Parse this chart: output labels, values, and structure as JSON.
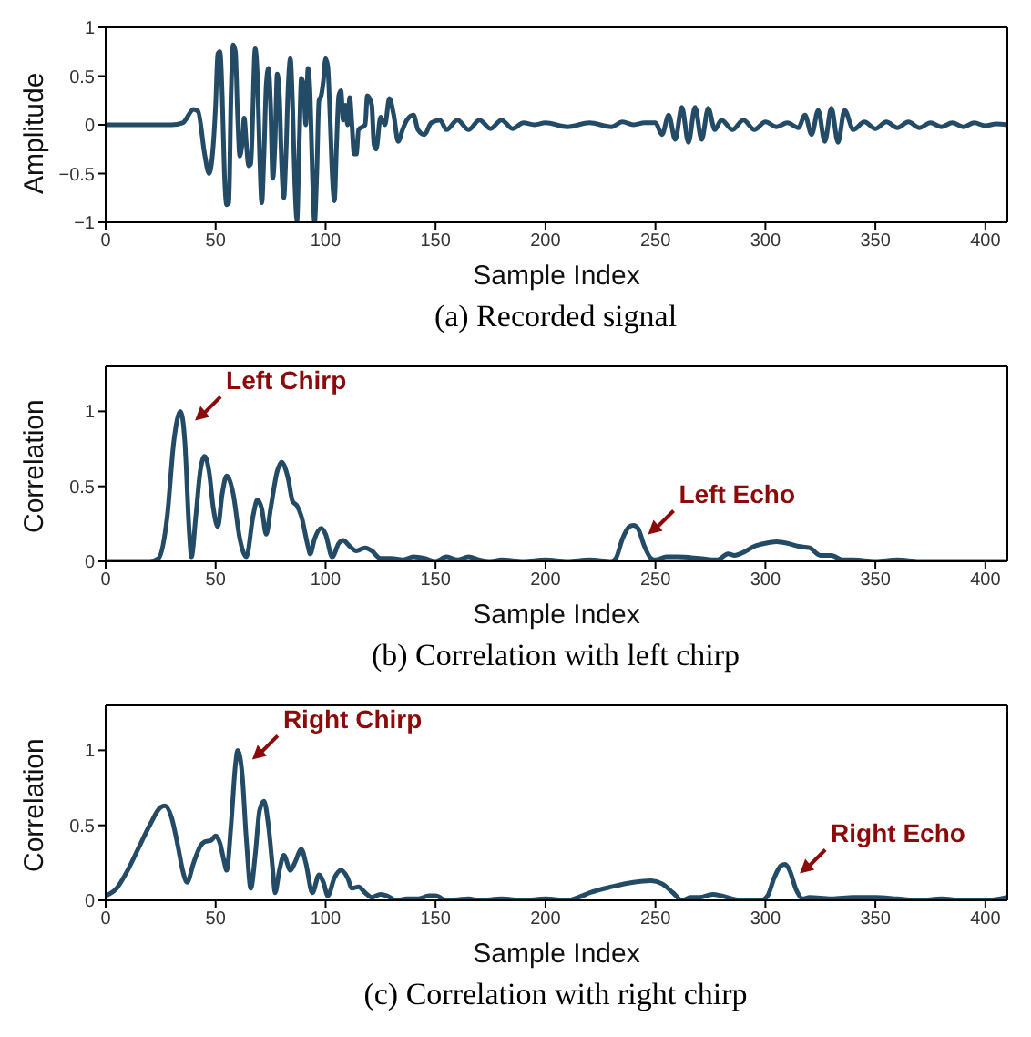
{
  "chart_data": [
    {
      "type": "line",
      "xlabel": "Sample Index",
      "ylabel": "Amplitude",
      "xlim": [
        0,
        410
      ],
      "xticks": [
        0,
        50,
        100,
        150,
        200,
        250,
        300,
        350,
        400
      ],
      "ylim": [
        -1,
        1
      ],
      "yticks": [
        -1,
        -0.5,
        0,
        0.5,
        1
      ],
      "marker": "none",
      "line_style": "solid",
      "color": "#234b66",
      "x": [
        0,
        10,
        20,
        30,
        35,
        40,
        42,
        45,
        47,
        50,
        51,
        52,
        53,
        54,
        55,
        56,
        57,
        58,
        59,
        60,
        61,
        62,
        63,
        64,
        65,
        66,
        68,
        69,
        70,
        71,
        72,
        73,
        74,
        75,
        76,
        77,
        78,
        79,
        80,
        81,
        82,
        83,
        84,
        85,
        86,
        87,
        88,
        89,
        90,
        91,
        92,
        93,
        94,
        95,
        96,
        97,
        98,
        99,
        100,
        101,
        102,
        103,
        104,
        105,
        106,
        107,
        108,
        109,
        110,
        111,
        112,
        113,
        114,
        115,
        118,
        119,
        121,
        122,
        123,
        125,
        127,
        129,
        131,
        133,
        135,
        137,
        140,
        142,
        145,
        148,
        152,
        155,
        160,
        165,
        170,
        175,
        180,
        185,
        190,
        195,
        200,
        210,
        220,
        230,
        235,
        240,
        245,
        250,
        253,
        256,
        259,
        262,
        265,
        268,
        271,
        274,
        277,
        280,
        285,
        290,
        295,
        300,
        305,
        310,
        315,
        318,
        321,
        324,
        327,
        330,
        333,
        336,
        340,
        345,
        350,
        355,
        360,
        365,
        370,
        375,
        380,
        385,
        390,
        395,
        400,
        405,
        410
      ],
      "values": [
        0,
        0,
        0,
        0,
        0.02,
        0.16,
        0.14,
        -0.3,
        -0.5,
        0.2,
        0.73,
        0.75,
        0.3,
        -0.5,
        -0.82,
        -0.8,
        0.3,
        0.82,
        0.75,
        0.1,
        -0.32,
        -0.2,
        0.07,
        -0.2,
        -0.42,
        -0.4,
        0.78,
        0.5,
        -0.3,
        -0.8,
        -0.3,
        0.4,
        0.58,
        0.2,
        -0.55,
        -0.2,
        0.52,
        0.3,
        -0.4,
        -0.75,
        -0.3,
        0.4,
        0.68,
        0.2,
        -0.6,
        -0.98,
        -0.2,
        0.48,
        0.4,
        0,
        0.58,
        0.3,
        -0.5,
        -1,
        -0.5,
        0.25,
        0.3,
        0.45,
        0.68,
        0.6,
        0.1,
        -0.5,
        -0.78,
        -0.2,
        0.3,
        0.35,
        0.05,
        0.2,
        0,
        0.28,
        0,
        -0.3,
        -0.3,
        -0.05,
        0,
        0.3,
        0.2,
        -0.2,
        -0.25,
        0.08,
        0,
        0.27,
        0.1,
        -0.17,
        -0.05,
        0.05,
        0.1,
        -0.05,
        -0.1,
        0.02,
        0.05,
        -0.05,
        0.05,
        -0.05,
        0.05,
        -0.04,
        0.05,
        -0.04,
        0.02,
        0,
        0.02,
        -0.02,
        0.02,
        -0.02,
        0.03,
        0,
        0.02,
        0.02,
        -0.1,
        0.1,
        -0.15,
        0.18,
        -0.18,
        0.18,
        -0.15,
        0.17,
        -0.05,
        0.05,
        -0.05,
        0.05,
        -0.05,
        0.03,
        -0.02,
        0.02,
        -0.03,
        0.1,
        -0.1,
        0.15,
        -0.17,
        0.17,
        -0.18,
        0.15,
        -0.05,
        0.03,
        -0.04,
        0.03,
        -0.03,
        0.03,
        -0.03,
        0.02,
        -0.02,
        0.02,
        -0.02,
        0.02,
        -0.01,
        0.01,
        0
      ],
      "annotations": [
        "(a) Recorded signal"
      ]
    },
    {
      "type": "line",
      "xlabel": "Sample Index",
      "ylabel": "Correlation",
      "xlim": [
        0,
        410
      ],
      "xticks": [
        0,
        50,
        100,
        150,
        200,
        250,
        300,
        350,
        400
      ],
      "ylim": [
        0,
        1.3
      ],
      "yticks": [
        0,
        0.5,
        1
      ],
      "marker": "none",
      "line_style": "solid",
      "color": "#234b66",
      "x": [
        0,
        10,
        20,
        24,
        28,
        31,
        34,
        36,
        38,
        39,
        41,
        43,
        45,
        47,
        49,
        51,
        53,
        55,
        58,
        61,
        64,
        67,
        69,
        71,
        73,
        75,
        78,
        80,
        83,
        85,
        87,
        89,
        92,
        93,
        95,
        98,
        100,
        103,
        106,
        108,
        111,
        114,
        118,
        121,
        125,
        130,
        135,
        140,
        145,
        150,
        155,
        160,
        165,
        170,
        175,
        180,
        190,
        200,
        210,
        220,
        230,
        232,
        235,
        238,
        240,
        242,
        245,
        248,
        250,
        255,
        260,
        270,
        278,
        283,
        286,
        290,
        295,
        300,
        305,
        310,
        315,
        320,
        325,
        330,
        335,
        340,
        350,
        360,
        370,
        380,
        390,
        400,
        410
      ],
      "values": [
        0,
        0,
        0,
        0.02,
        0.3,
        0.8,
        1,
        0.8,
        0.2,
        0.03,
        0.3,
        0.6,
        0.7,
        0.6,
        0.35,
        0.23,
        0.45,
        0.57,
        0.45,
        0.15,
        0.03,
        0.3,
        0.41,
        0.35,
        0.18,
        0.35,
        0.6,
        0.66,
        0.55,
        0.4,
        0.37,
        0.3,
        0.1,
        0.05,
        0.15,
        0.22,
        0.18,
        0.03,
        0.12,
        0.14,
        0.1,
        0.07,
        0.09,
        0.07,
        0.02,
        0.02,
        0.01,
        0.03,
        0.02,
        0,
        0.03,
        0.01,
        0.03,
        0.01,
        0,
        0.01,
        0,
        0.01,
        0,
        0.01,
        0,
        0.02,
        0.15,
        0.23,
        0.24,
        0.22,
        0.1,
        0.02,
        0.01,
        0.03,
        0.03,
        0.02,
        0.01,
        0.05,
        0.04,
        0.06,
        0.1,
        0.12,
        0.13,
        0.12,
        0.1,
        0.09,
        0.04,
        0.04,
        0.01,
        0.01,
        0,
        0.01,
        0,
        0,
        0,
        0,
        0
      ],
      "annotations": [
        {
          "text": "Left Chirp",
          "x": 34,
          "y": 1
        },
        {
          "text": "Left Echo",
          "x": 240,
          "y": 0.24
        },
        "(b) Correlation with left chirp"
      ]
    },
    {
      "type": "line",
      "xlabel": "Sample Index",
      "ylabel": "Correlation",
      "xlim": [
        0,
        410
      ],
      "xticks": [
        0,
        50,
        100,
        150,
        200,
        250,
        300,
        350,
        400
      ],
      "ylim": [
        0,
        1.3
      ],
      "yticks": [
        0,
        0.5,
        1
      ],
      "marker": "none",
      "line_style": "solid",
      "color": "#234b66",
      "x": [
        0,
        5,
        10,
        15,
        20,
        25,
        27,
        30,
        33,
        35,
        37,
        40,
        43,
        45,
        48,
        50,
        52,
        54,
        55,
        57,
        59,
        60,
        62,
        64,
        66,
        68,
        70,
        72,
        74,
        76,
        77,
        79,
        81,
        84,
        86,
        89,
        91,
        94,
        97,
        99,
        101,
        104,
        107,
        110,
        112,
        115,
        118,
        121,
        125,
        128,
        132,
        137,
        142,
        147,
        150,
        155,
        165,
        170,
        180,
        190,
        200,
        210,
        215,
        220,
        230,
        240,
        248,
        253,
        258,
        262,
        266,
        270,
        276,
        280,
        285,
        290,
        298,
        301,
        304,
        307,
        309,
        311,
        314,
        317,
        320,
        330,
        340,
        350,
        360,
        370,
        380,
        390,
        400,
        410
      ],
      "values": [
        0.03,
        0.08,
        0.2,
        0.35,
        0.5,
        0.62,
        0.63,
        0.55,
        0.35,
        0.2,
        0.12,
        0.25,
        0.36,
        0.39,
        0.4,
        0.43,
        0.38,
        0.25,
        0.2,
        0.5,
        0.9,
        1,
        0.85,
        0.4,
        0.08,
        0.3,
        0.6,
        0.66,
        0.5,
        0.2,
        0.05,
        0.2,
        0.3,
        0.2,
        0.25,
        0.34,
        0.25,
        0.05,
        0.17,
        0.12,
        0.03,
        0.15,
        0.2,
        0.15,
        0.08,
        0.09,
        0.05,
        0.02,
        0.04,
        0.03,
        0,
        0.01,
        0.01,
        0.03,
        0.03,
        0,
        0.01,
        0,
        0.01,
        0,
        0.01,
        0,
        0.02,
        0.05,
        0.09,
        0.12,
        0.13,
        0.11,
        0.05,
        0,
        0.02,
        0.02,
        0.04,
        0.03,
        0.01,
        0,
        0,
        0.03,
        0.15,
        0.23,
        0.24,
        0.2,
        0.07,
        0.01,
        0.02,
        0.01,
        0.02,
        0.02,
        0.01,
        0,
        0.01,
        0,
        0,
        0.02
      ],
      "annotations": [
        {
          "text": "Right Chirp",
          "x": 60,
          "y": 1
        },
        {
          "text": "Right Echo",
          "x": 309,
          "y": 0.24
        },
        "(c) Correlation with right chirp"
      ]
    }
  ]
}
